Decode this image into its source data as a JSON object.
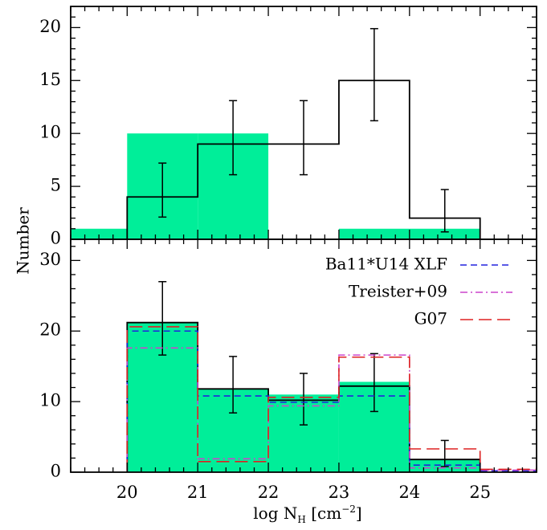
{
  "chart_data": [
    {
      "type": "bar",
      "panel": "top",
      "ylabel": "Number",
      "xlim": [
        19.2,
        25.8
      ],
      "ylim": [
        0,
        22
      ],
      "yticks": [
        0,
        5,
        10,
        15,
        20
      ],
      "bin_edges": [
        19.2,
        20,
        21,
        22,
        23,
        24,
        25
      ],
      "series": [
        {
          "values": [
            1,
            10,
            10,
            0,
            1,
            1
          ],
          "style": "filled",
          "color": "#00ee99"
        },
        {
          "values": [
            null,
            4,
            9,
            9,
            15,
            2
          ],
          "style": "step",
          "color": "#000000",
          "error_x": [
            20.5,
            21.5,
            22.5,
            23.5,
            24.5
          ],
          "error_lo": [
            2.1,
            6.1,
            6.1,
            11.2,
            0.7
          ],
          "error_hi": [
            7.2,
            13.1,
            13.1,
            19.9,
            4.7
          ]
        }
      ]
    },
    {
      "type": "bar",
      "panel": "bottom",
      "xlabel_main": "log N",
      "xlabel_sub": "H",
      "xlabel_unit": "[cm",
      "xlabel_exp": "−2",
      "xlabel_close": "]",
      "xlim": [
        19.2,
        25.8
      ],
      "ylim": [
        0,
        33
      ],
      "yticks": [
        0,
        10,
        20,
        30
      ],
      "xticks": [
        "20",
        "21",
        "22",
        "23",
        "24",
        "25"
      ],
      "bin_edges": [
        20,
        21,
        22,
        23,
        24,
        25
      ],
      "series": [
        {
          "style": "filled",
          "color": "#00ee99",
          "values": [
            21.2,
            11.8,
            11.0,
            12.8,
            1.8
          ]
        },
        {
          "style": "step",
          "color": "#000000",
          "values": [
            21.2,
            11.8,
            10.2,
            12.2,
            1.8
          ],
          "error_x": [
            20.5,
            21.5,
            22.5,
            23.5,
            24.5
          ],
          "error_lo": [
            16.6,
            8.4,
            6.7,
            8.6,
            0.8
          ],
          "error_hi": [
            27.0,
            16.4,
            14.0,
            16.8,
            4.5
          ]
        },
        {
          "name": "Ba11*U14 XLF",
          "style": "dash",
          "color": "#2222dd",
          "values": [
            20.0,
            10.8,
            9.9,
            10.8,
            1.0,
            0.2
          ]
        },
        {
          "name": "Treister+09",
          "style": "dashdot",
          "color": "#cc44cc",
          "values": [
            17.6,
            1.9,
            9.4,
            16.6,
            0.6,
            0.3
          ]
        },
        {
          "name": "G07",
          "style": "longdash",
          "color": "#dd2222",
          "values": [
            20.6,
            1.5,
            10.6,
            16.3,
            3.3,
            0.4
          ]
        }
      ]
    }
  ]
}
